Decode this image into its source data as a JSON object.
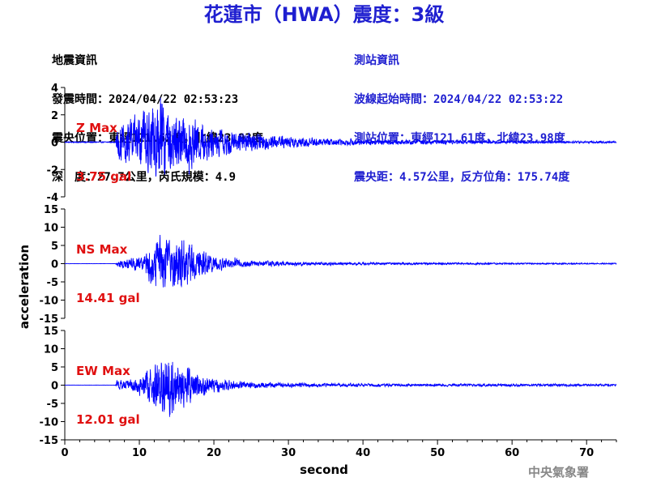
{
  "title": "花蓮市（HWA）震度：3級",
  "event_info": {
    "heading": "地震資訊",
    "origin_time": "發震時間：2024/04/22 02:53:23",
    "epicenter": "震央位置：東經121.62度，北緯23.93度",
    "depth_magnitude": "深　度：27.7公里，芮氏規模：4.9"
  },
  "station_info": {
    "heading": "測站資訊",
    "wave_start_time": "波線起始時間：2024/04/22 02:53:22",
    "station_location": "測站位置：東經121.61度，北緯23.98度",
    "distance_azimuth": "震央距：4.57公里，反方位角：175.74度"
  },
  "colors": {
    "trace": "#0000ff",
    "title": "#1f1fd0",
    "max_label": "#e01010"
  },
  "watermark": "中央氣象署",
  "chart_data": {
    "type": "line",
    "xlabel": "second",
    "ylabel": "acceleration",
    "xlim": [
      0,
      74
    ],
    "xticks": [
      0,
      10,
      20,
      30,
      40,
      50,
      60,
      70
    ],
    "xtick_labels": [
      "0",
      "10",
      "20",
      "30",
      "40",
      "50",
      "60",
      "70"
    ],
    "series": [
      {
        "name": "Z",
        "max_label": "Z Max",
        "max_value": "3.75 gal",
        "ylim": [
          -4,
          4
        ],
        "yticks": [
          -4,
          -2,
          0,
          2,
          4
        ],
        "ytick_labels": [
          "-4",
          "-2",
          "0",
          "2",
          "4"
        ],
        "onset": 6.9,
        "envelope": [
          [
            0,
            0.05
          ],
          [
            6.8,
            0.05
          ],
          [
            7.0,
            1.6
          ],
          [
            8.5,
            2.0
          ],
          [
            10.5,
            2.6
          ],
          [
            11.5,
            3.2
          ],
          [
            13.0,
            3.5
          ],
          [
            14.5,
            3.0
          ],
          [
            16.5,
            2.4
          ],
          [
            19.0,
            1.6
          ],
          [
            22.0,
            1.1
          ],
          [
            25.0,
            0.8
          ],
          [
            30.0,
            0.55
          ],
          [
            35.0,
            0.35
          ],
          [
            40.0,
            0.25
          ],
          [
            50.0,
            0.18
          ],
          [
            60.0,
            0.12
          ],
          [
            74.0,
            0.09
          ]
        ]
      },
      {
        "name": "NS",
        "max_label": "NS Max",
        "max_value": "14.41 gal",
        "ylim": [
          -15,
          15
        ],
        "yticks": [
          -15,
          -10,
          -5,
          0,
          5,
          10,
          15
        ],
        "ytick_labels": [
          "-15",
          "-10",
          "-5",
          "0",
          "5",
          "10",
          "15"
        ],
        "onset": 6.9,
        "envelope": [
          [
            0,
            0.05
          ],
          [
            6.8,
            0.05
          ],
          [
            7.0,
            1.2
          ],
          [
            9.0,
            1.8
          ],
          [
            10.5,
            3.0
          ],
          [
            11.5,
            7.0
          ],
          [
            13.0,
            9.5
          ],
          [
            14.0,
            8.0
          ],
          [
            15.0,
            10.0
          ],
          [
            16.0,
            9.0
          ],
          [
            17.5,
            6.0
          ],
          [
            19.0,
            4.0
          ],
          [
            21.0,
            2.2
          ],
          [
            24.0,
            1.2
          ],
          [
            28.0,
            0.8
          ],
          [
            35.0,
            0.5
          ],
          [
            45.0,
            0.35
          ],
          [
            60.0,
            0.25
          ],
          [
            74.0,
            0.2
          ]
        ]
      },
      {
        "name": "EW",
        "max_label": "EW Max",
        "max_value": "12.01 gal",
        "ylim": [
          -15,
          15
        ],
        "yticks": [
          -15,
          -10,
          -5,
          0,
          5,
          10,
          15
        ],
        "ytick_labels": [
          "-15",
          "-10",
          "-5",
          "0",
          "5",
          "10",
          "15"
        ],
        "onset": 6.9,
        "envelope": [
          [
            0,
            0.05
          ],
          [
            6.8,
            0.05
          ],
          [
            7.0,
            1.6
          ],
          [
            9.0,
            2.0
          ],
          [
            10.5,
            3.5
          ],
          [
            11.5,
            6.5
          ],
          [
            12.5,
            9.0
          ],
          [
            14.0,
            11.0
          ],
          [
            15.0,
            8.0
          ],
          [
            16.0,
            7.0
          ],
          [
            17.5,
            5.0
          ],
          [
            19.0,
            3.0
          ],
          [
            21.0,
            2.0
          ],
          [
            24.0,
            1.2
          ],
          [
            28.0,
            0.9
          ],
          [
            35.0,
            0.6
          ],
          [
            45.0,
            0.45
          ],
          [
            60.0,
            0.4
          ],
          [
            74.0,
            0.35
          ]
        ]
      }
    ]
  }
}
